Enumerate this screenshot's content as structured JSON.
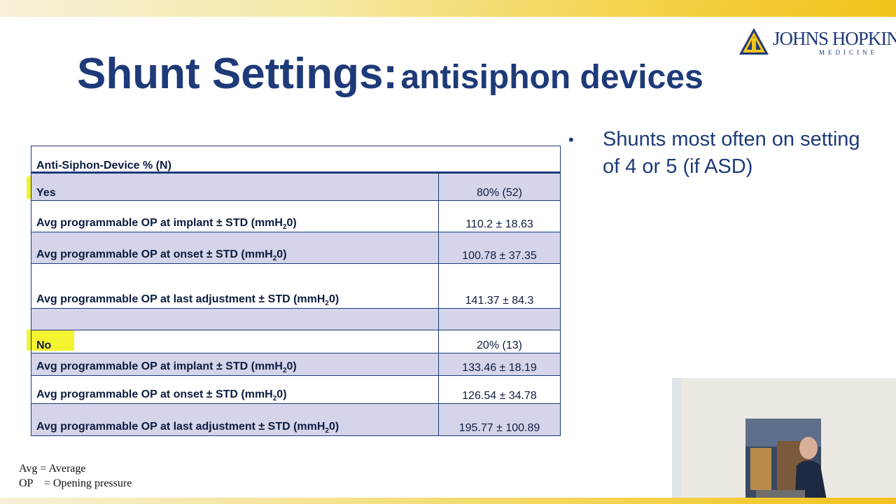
{
  "header": {
    "logo_line1": "JOHNS HOPKINS",
    "logo_line2": "MEDICINE"
  },
  "title": {
    "main": "Shunt Settings:",
    "sub": "antisiphon devices"
  },
  "bullet": {
    "marker": "•",
    "text": "Shunts most often on setting of 4 or 5 (if ASD)"
  },
  "table": {
    "header": "Anti-Siphon-Device % (N)",
    "rows": [
      {
        "label": "Yes",
        "value": "80% (52)"
      },
      {
        "label": "Avg programmable OP at implant ± STD (mmH",
        "sub": "2",
        "tail": "0)",
        "value": "110.2 ± 18.63"
      },
      {
        "label": "Avg programmable OP at onset ± STD (mmH",
        "sub": "2",
        "tail": "0)",
        "value": "100.78 ± 37.35"
      },
      {
        "label": "Avg programmable OP at last adjustment ± STD  (mmH",
        "sub": "2",
        "tail": "0)",
        "value": "141.37 ± 84.3"
      },
      {
        "label": "",
        "value": ""
      },
      {
        "label": "No",
        "value": "20% (13)"
      },
      {
        "label": "Avg programmable OP at implant ± STD (mmH",
        "sub": "2",
        "tail": "0)",
        "value": "133.46 ± 18.19"
      },
      {
        "label": "Avg programmable OP at onset ± STD (mmH",
        "sub": "2",
        "tail": "0)",
        "value": "126.54 ± 34.78"
      },
      {
        "label": "Avg programmable OP at last adjustment ± STD (mmH",
        "sub": "2",
        "tail": "0)",
        "value": "195.77 ± 100.89"
      }
    ]
  },
  "footnotes": {
    "line1": "Avg = Average",
    "line2": "OP    = Opening pressure"
  },
  "colors": {
    "title": "#1e3a78",
    "row_shade": "#d4d4ea",
    "highlight": "#f2f21a",
    "accent_bar": "#f2c21a"
  }
}
